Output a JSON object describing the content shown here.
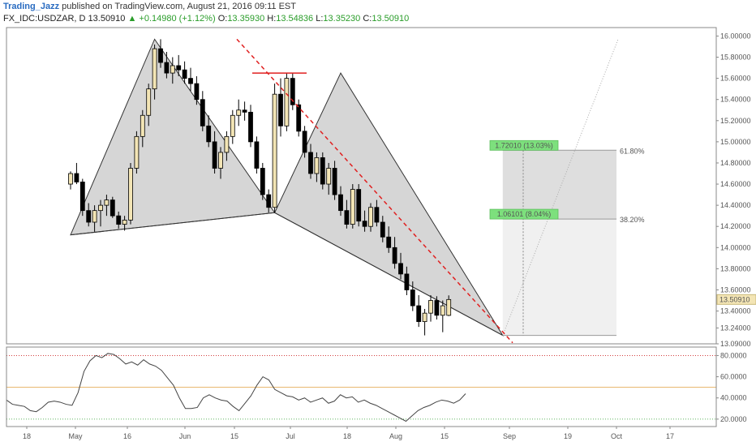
{
  "header": {
    "author": "Trading_Jazz",
    "published": "published on TradingView.com, August 21, 2016 09:11 EST",
    "symbol": "FX_IDC:USDZAR, D",
    "price": "13.50910",
    "change": "+0.14980 (+1.12%)",
    "open_label": "O:",
    "open": "13.35930",
    "high_label": "H:",
    "high": "13.54836",
    "low_label": "L:",
    "low": "13.35230",
    "close_label": "C:",
    "close": "13.50910"
  },
  "colors": {
    "up_candle": "#f3e5b5",
    "down_candle": "#000000",
    "pattern_fill": "#c8c8c8",
    "trendline": "#e02020",
    "label_green": "#7de07d",
    "rsi_line": "#444444"
  },
  "chart_data": [
    {
      "type": "candlestick",
      "ylim": [
        13.09,
        16.08
      ],
      "y_ticks": [
        "16.00000",
        "15.80000",
        "15.60000",
        "15.40000",
        "15.20000",
        "15.00000",
        "14.80000",
        "14.60000",
        "14.40000",
        "14.20000",
        "14.00000",
        "13.80000",
        "13.60000",
        "13.40000",
        "13.24000",
        "13.09000"
      ],
      "x_ticks": [
        "18",
        "May",
        "16",
        "Jun",
        "15",
        "Jul",
        "18",
        "Aug",
        "15",
        "Sep",
        "19",
        "Oct",
        "17"
      ],
      "last_price_label": "13.50910",
      "fib_levels": [
        {
          "label": "61.80%",
          "value": 14.92
        },
        {
          "label": "38.20%",
          "value": 14.27
        }
      ],
      "measure_labels": [
        "1.72010 (13.03%)",
        "1.06101 (8.04%)"
      ],
      "pattern_points": [
        [
          0,
          14.12
        ],
        [
          14,
          15.97
        ],
        [
          34,
          14.33
        ],
        [
          45,
          15.65
        ],
        [
          72,
          13.17
        ]
      ],
      "series": [
        {
          "ohlc": [
            [
              14.6,
              14.72,
              14.55,
              14.7
            ],
            [
              14.7,
              14.8,
              14.6,
              14.62
            ],
            [
              14.62,
              14.65,
              14.3,
              14.35
            ],
            [
              14.35,
              14.42,
              14.2,
              14.24
            ],
            [
              14.24,
              14.4,
              14.15,
              14.35
            ],
            [
              14.35,
              14.45,
              14.2,
              14.4
            ],
            [
              14.4,
              14.5,
              14.3,
              14.45
            ],
            [
              14.45,
              14.48,
              14.28,
              14.3
            ],
            [
              14.3,
              14.34,
              14.18,
              14.22
            ],
            [
              14.22,
              14.3,
              14.16,
              14.26
            ],
            [
              14.26,
              14.8,
              14.22,
              14.75
            ],
            [
              14.75,
              15.1,
              14.7,
              15.05
            ],
            [
              15.05,
              15.3,
              14.95,
              15.25
            ],
            [
              15.25,
              15.55,
              15.15,
              15.5
            ],
            [
              15.5,
              15.92,
              15.4,
              15.88
            ],
            [
              15.88,
              15.97,
              15.7,
              15.75
            ],
            [
              15.75,
              15.85,
              15.6,
              15.65
            ],
            [
              15.65,
              15.8,
              15.55,
              15.72
            ],
            [
              15.72,
              15.82,
              15.62,
              15.68
            ],
            [
              15.68,
              15.76,
              15.55,
              15.6
            ],
            [
              15.6,
              15.7,
              15.48,
              15.55
            ],
            [
              15.55,
              15.62,
              15.35,
              15.4
            ],
            [
              15.4,
              15.48,
              15.1,
              15.15
            ],
            [
              15.15,
              15.25,
              14.95,
              15.0
            ],
            [
              15.0,
              15.1,
              14.7,
              14.75
            ],
            [
              14.75,
              14.95,
              14.65,
              14.9
            ],
            [
              14.9,
              15.1,
              14.82,
              15.05
            ],
            [
              15.05,
              15.3,
              14.98,
              15.25
            ],
            [
              15.25,
              15.4,
              15.15,
              15.3
            ],
            [
              15.3,
              15.38,
              15.2,
              15.28
            ],
            [
              15.28,
              15.35,
              14.95,
              15.0
            ],
            [
              15.0,
              15.05,
              14.7,
              14.75
            ],
            [
              14.75,
              14.8,
              14.45,
              14.5
            ],
            [
              14.5,
              14.55,
              14.33,
              14.38
            ],
            [
              14.38,
              15.55,
              14.33,
              15.45
            ],
            [
              15.45,
              15.6,
              15.05,
              15.15
            ],
            [
              15.15,
              15.65,
              15.1,
              15.6
            ],
            [
              15.6,
              15.65,
              15.3,
              15.35
            ],
            [
              15.35,
              15.4,
              15.05,
              15.1
            ],
            [
              15.1,
              15.15,
              14.85,
              14.9
            ],
            [
              14.9,
              14.98,
              14.65,
              14.7
            ],
            [
              14.7,
              14.9,
              14.62,
              14.85
            ],
            [
              14.85,
              14.9,
              14.55,
              14.6
            ],
            [
              14.6,
              14.8,
              14.5,
              14.75
            ],
            [
              14.75,
              14.82,
              14.45,
              14.5
            ],
            [
              14.5,
              14.58,
              14.3,
              14.35
            ],
            [
              14.35,
              14.45,
              14.18,
              14.22
            ],
            [
              14.22,
              14.6,
              14.18,
              14.55
            ],
            [
              14.55,
              14.6,
              14.2,
              14.25
            ],
            [
              14.25,
              14.35,
              14.15,
              14.2
            ],
            [
              14.2,
              14.42,
              14.15,
              14.38
            ],
            [
              14.38,
              14.45,
              14.2,
              14.24
            ],
            [
              14.24,
              14.3,
              14.05,
              14.1
            ],
            [
              14.1,
              14.2,
              13.95,
              14.0
            ],
            [
              14.0,
              14.1,
              13.8,
              13.85
            ],
            [
              13.85,
              13.95,
              13.7,
              13.75
            ],
            [
              13.75,
              13.82,
              13.55,
              13.6
            ],
            [
              13.6,
              13.68,
              13.4,
              13.45
            ],
            [
              13.45,
              13.55,
              13.25,
              13.3
            ],
            [
              13.3,
              13.42,
              13.17,
              13.38
            ],
            [
              13.38,
              13.55,
              13.3,
              13.5
            ],
            [
              13.5,
              13.54,
              13.32,
              13.36
            ],
            [
              13.36,
              13.5,
              13.2,
              13.45
            ],
            [
              13.359,
              13.548,
              13.352,
              13.509
            ]
          ]
        }
      ]
    },
    {
      "type": "line",
      "name": "RSI",
      "ylim": [
        13,
        88
      ],
      "y_ticks": [
        "80.0000",
        "60.0000",
        "40.0000",
        "20.0000"
      ],
      "levels": [
        80,
        50,
        20
      ],
      "values": [
        38,
        34,
        33,
        32,
        28,
        27,
        31,
        36,
        37,
        36,
        34,
        33,
        45,
        65,
        75,
        80,
        78,
        82,
        81,
        77,
        72,
        74,
        71,
        76,
        72,
        70,
        66,
        59,
        52,
        40,
        30,
        30,
        31,
        40,
        43,
        40,
        38,
        37,
        32,
        28,
        35,
        42,
        52,
        60,
        57,
        48,
        45,
        42,
        41,
        38,
        40,
        36,
        38,
        40,
        35,
        37,
        43,
        40,
        41,
        36,
        38,
        35,
        33,
        30,
        27,
        24,
        21,
        18,
        23,
        28,
        31,
        33,
        36,
        38,
        37,
        35,
        38,
        44
      ]
    }
  ]
}
